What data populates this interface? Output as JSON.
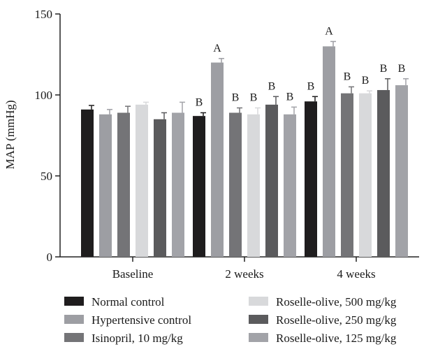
{
  "chart_data": {
    "type": "bar",
    "title": "",
    "xlabel": "",
    "ylabel": "MAP (mmHg)",
    "ylim": [
      0,
      150
    ],
    "yticks": [
      0,
      50,
      100,
      150
    ],
    "grid": false,
    "legend_position": "bottom",
    "categories": [
      "Baseline",
      "2 weeks",
      "4 weeks"
    ],
    "series": [
      {
        "name": "Normal control",
        "color": "#1f1d1e",
        "values": [
          91,
          87,
          96
        ],
        "errors": [
          2.5,
          2,
          3
        ],
        "labels": [
          "",
          "B",
          "B"
        ]
      },
      {
        "name": "Hypertensive control",
        "color": "#9d9ea3",
        "values": [
          88,
          120,
          130
        ],
        "errors": [
          3,
          2.5,
          3
        ],
        "labels": [
          "",
          "A",
          "A"
        ]
      },
      {
        "name": "Isinopril, 10 mg/kg",
        "color": "#747477",
        "values": [
          89,
          89,
          101
        ],
        "errors": [
          4,
          3,
          4
        ],
        "labels": [
          "",
          "B",
          "B"
        ]
      },
      {
        "name": "Roselle-olive, 500 mg/kg",
        "color": "#d8d9db",
        "values": [
          94,
          88,
          101
        ],
        "errors": [
          1.5,
          4,
          1.5
        ],
        "labels": [
          "",
          "B",
          "B"
        ]
      },
      {
        "name": "Roselle-olive, 250 mg/kg",
        "color": "#5b5b5d",
        "values": [
          85,
          94,
          103
        ],
        "errors": [
          4,
          5,
          7
        ],
        "labels": [
          "",
          "B",
          "B"
        ]
      },
      {
        "name": "Roselle-olive, 125 mg/kg",
        "color": "#a2a3a8",
        "values": [
          89,
          88,
          106
        ],
        "errors": [
          6.5,
          4.5,
          4
        ],
        "labels": [
          "",
          "B",
          "B"
        ]
      }
    ]
  }
}
